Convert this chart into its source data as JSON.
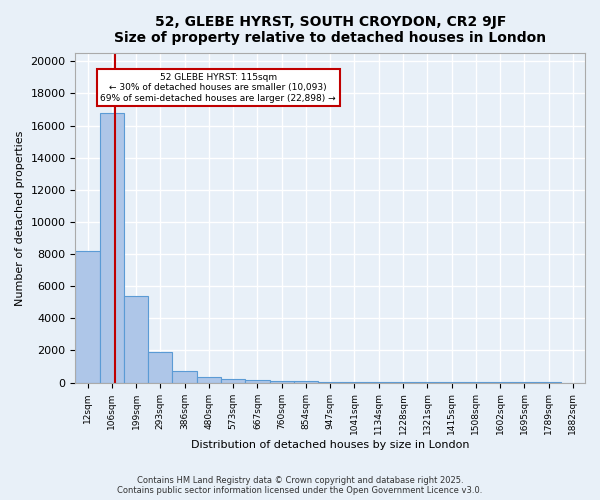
{
  "title": "52, GLEBE HYRST, SOUTH CROYDON, CR2 9JF",
  "subtitle": "Size of property relative to detached houses in London",
  "xlabel": "Distribution of detached houses by size in London",
  "ylabel": "Number of detached properties",
  "bar_values": [
    8200,
    16800,
    5400,
    1900,
    700,
    350,
    250,
    150,
    100,
    80,
    60,
    50,
    40,
    30,
    25,
    20,
    15,
    12,
    10,
    8,
    5
  ],
  "bar_labels": [
    "12sqm",
    "106sqm",
    "199sqm",
    "293sqm",
    "386sqm",
    "480sqm",
    "573sqm",
    "667sqm",
    "760sqm",
    "854sqm",
    "947sqm",
    "1041sqm",
    "1134sqm",
    "1228sqm",
    "1321sqm",
    "1415sqm",
    "1508sqm",
    "1602sqm",
    "1695sqm",
    "1789sqm",
    "1882sqm"
  ],
  "bar_color": "#aec6e8",
  "bar_edge_color": "#5b9bd5",
  "vline_x": 1.15,
  "vline_color": "#c00000",
  "annotation_text": "52 GLEBE HYRST: 115sqm\n← 30% of detached houses are smaller (10,093)\n69% of semi-detached houses are larger (22,898) →",
  "annotation_box_color": "#c00000",
  "annotation_text_color": "#000000",
  "ylim": [
    0,
    20500
  ],
  "yticks": [
    0,
    2000,
    4000,
    6000,
    8000,
    10000,
    12000,
    14000,
    16000,
    18000,
    20000
  ],
  "background_color": "#e8f0f8",
  "grid_color": "#ffffff",
  "footer_line1": "Contains HM Land Registry data © Crown copyright and database right 2025.",
  "footer_line2": "Contains public sector information licensed under the Open Government Licence v3.0."
}
